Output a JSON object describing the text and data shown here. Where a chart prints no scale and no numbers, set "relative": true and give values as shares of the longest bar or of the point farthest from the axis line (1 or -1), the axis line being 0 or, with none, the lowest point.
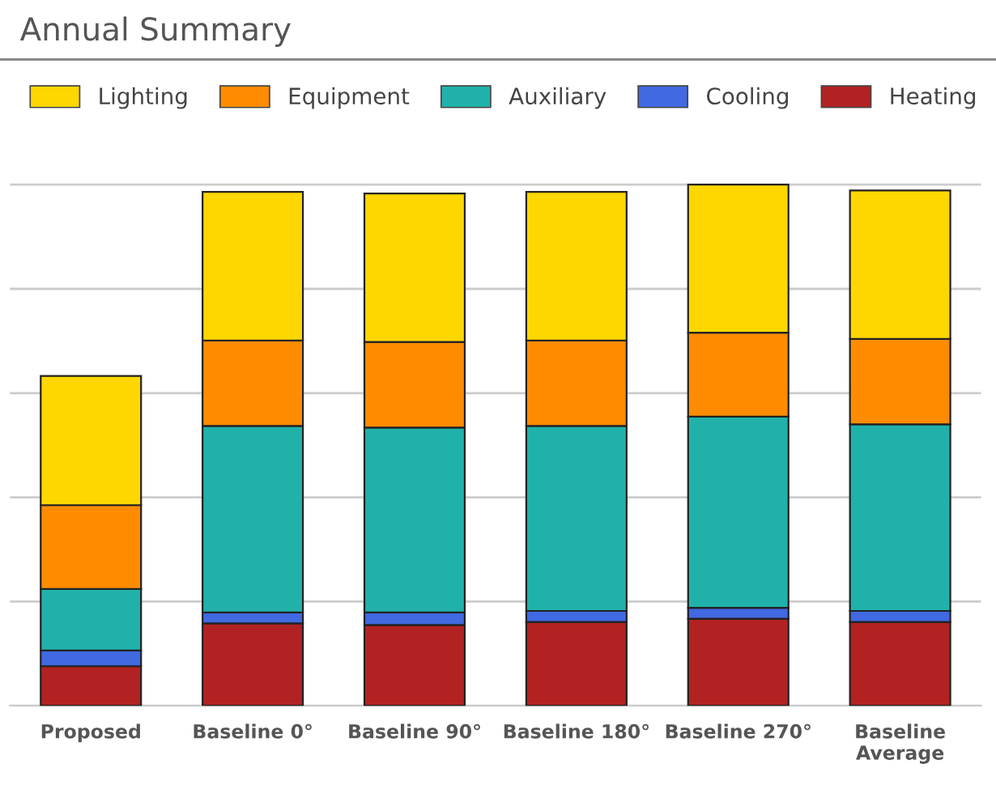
{
  "chart_data": {
    "type": "bar",
    "title": "Annual Summary",
    "relative": true,
    "stacked": true,
    "grid": "y",
    "legend": "top left",
    "categories": [
      "Proposed",
      "Baseline 0°",
      "Baseline 90°",
      "Baseline 180°",
      "Baseline 270°",
      "Baseline\nAverage"
    ],
    "series": [
      {
        "name": "Heating",
        "color": "#b22222",
        "values": [
          0.076,
          0.158,
          0.155,
          0.161,
          0.167,
          0.161
        ]
      },
      {
        "name": "Cooling",
        "color": "#4169e1",
        "values": [
          0.03,
          0.021,
          0.024,
          0.021,
          0.021,
          0.021
        ]
      },
      {
        "name": "Auxiliary",
        "color": "#20b2aa",
        "values": [
          0.118,
          0.358,
          0.355,
          0.355,
          0.367,
          0.358
        ]
      },
      {
        "name": "Equipment",
        "color": "#ff8c00",
        "values": [
          0.161,
          0.164,
          0.164,
          0.164,
          0.161,
          0.164
        ]
      },
      {
        "name": "Lighting",
        "color": "#ffd700",
        "values": [
          0.248,
          0.285,
          0.285,
          0.285,
          0.284,
          0.285
        ]
      }
    ]
  }
}
